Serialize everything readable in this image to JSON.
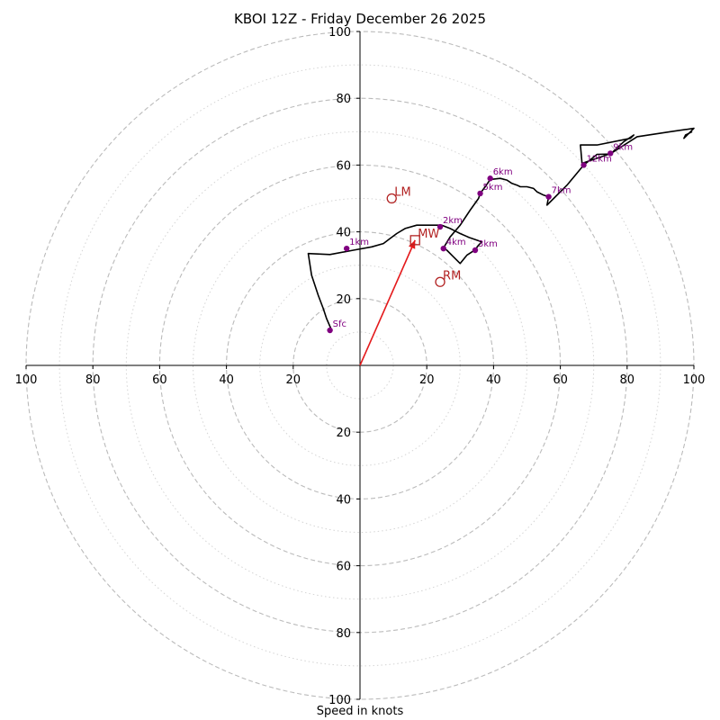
{
  "chart_data": {
    "type": "hodograph",
    "title": "KBOI 12Z - Friday December 26 2025",
    "xlabel": "Speed in knots",
    "units": "knots",
    "axis_range": [
      -100,
      100
    ],
    "dashed_rings": [
      20,
      40,
      60,
      80,
      100
    ],
    "dotted_rings": [
      10,
      30,
      50,
      70,
      90
    ],
    "x_tick_values": [
      -100,
      -80,
      -60,
      -40,
      -20,
      20,
      40,
      60,
      80,
      100
    ],
    "x_tick_labels": [
      "100",
      "80",
      "60",
      "40",
      "20",
      "20",
      "40",
      "60",
      "80",
      "100"
    ],
    "y_tick_values": [
      100,
      80,
      60,
      40,
      20,
      -20,
      -40,
      -60,
      -80,
      -100
    ],
    "y_tick_labels": [
      "100",
      "80",
      "60",
      "40",
      "20",
      "20",
      "40",
      "60",
      "80",
      "100"
    ],
    "hodograph_line": [
      [
        -8.5,
        10.5
      ],
      [
        -10,
        14
      ],
      [
        -11,
        17
      ],
      [
        -12.5,
        21
      ],
      [
        -14.5,
        27
      ],
      [
        -15.5,
        33.5
      ],
      [
        -9,
        33.2
      ],
      [
        -2,
        34.5
      ],
      [
        3.5,
        35.5
      ],
      [
        7,
        36.5
      ],
      [
        9,
        38
      ],
      [
        11,
        39.5
      ],
      [
        13.5,
        41
      ],
      [
        17,
        42
      ],
      [
        22,
        42
      ],
      [
        24.5,
        42
      ],
      [
        27,
        41
      ],
      [
        30,
        39.5
      ],
      [
        33,
        38.2
      ],
      [
        36.5,
        37
      ],
      [
        35.5,
        36
      ],
      [
        34.5,
        34.6
      ],
      [
        32,
        33
      ],
      [
        30,
        30.5
      ],
      [
        28,
        32.5
      ],
      [
        26,
        34.5
      ],
      [
        25,
        35.2
      ],
      [
        27,
        38.5
      ],
      [
        30,
        42
      ],
      [
        33,
        46.5
      ],
      [
        35.5,
        50
      ],
      [
        36,
        51.5
      ],
      [
        37.5,
        53.5
      ],
      [
        39,
        55.7
      ],
      [
        42,
        56
      ],
      [
        44,
        55.5
      ],
      [
        45.5,
        54.5
      ],
      [
        47,
        54
      ],
      [
        48,
        53.5
      ],
      [
        50,
        53.5
      ],
      [
        52,
        53
      ],
      [
        53,
        52
      ],
      [
        55,
        51
      ],
      [
        56.5,
        50.5
      ],
      [
        56,
        48
      ],
      [
        58,
        50
      ],
      [
        62,
        54
      ],
      [
        67,
        60
      ],
      [
        71,
        63.2
      ],
      [
        75,
        63.3
      ],
      [
        79,
        67
      ],
      [
        82,
        69
      ],
      [
        81,
        68
      ],
      [
        71,
        66
      ],
      [
        66,
        66
      ],
      [
        66.5,
        60.5
      ],
      [
        75,
        63.4
      ],
      [
        83,
        68.5
      ],
      [
        93,
        70
      ],
      [
        100,
        71
      ],
      [
        97,
        68
      ],
      [
        97.5,
        69
      ],
      [
        99.5,
        70
      ]
    ],
    "height_markers": [
      {
        "label": "Sfc",
        "u": -9,
        "v": 10.5
      },
      {
        "label": "1km",
        "u": -4,
        "v": 35
      },
      {
        "label": "2km",
        "u": 24,
        "v": 41.5
      },
      {
        "label": "3km",
        "u": 34.5,
        "v": 34.5
      },
      {
        "label": "4km",
        "u": 25,
        "v": 35
      },
      {
        "label": "5km",
        "u": 36,
        "v": 51.5
      },
      {
        "label": "6km",
        "u": 39,
        "v": 56
      },
      {
        "label": "7km",
        "u": 56.5,
        "v": 50.5
      },
      {
        "label": "12km",
        "u": 67,
        "v": 60
      },
      {
        "label": "9km",
        "u": 75,
        "v": 63.5
      }
    ],
    "storm_motion": [
      {
        "label": "LM",
        "u": 9.5,
        "v": 50,
        "marker": "circle"
      },
      {
        "label": "RM",
        "u": 24,
        "v": 25,
        "marker": "circle"
      },
      {
        "label": "MW",
        "u": 16.5,
        "v": 37.5,
        "marker": "square"
      }
    ],
    "mean_wind_vector": {
      "from": [
        0,
        0
      ],
      "to": [
        16.5,
        37.5
      ]
    },
    "colors": {
      "line": "#000000",
      "markers": "#800080",
      "storm_motion": "#b22222",
      "vector": "#e41a1c",
      "grid": "#bbbbbb"
    }
  }
}
